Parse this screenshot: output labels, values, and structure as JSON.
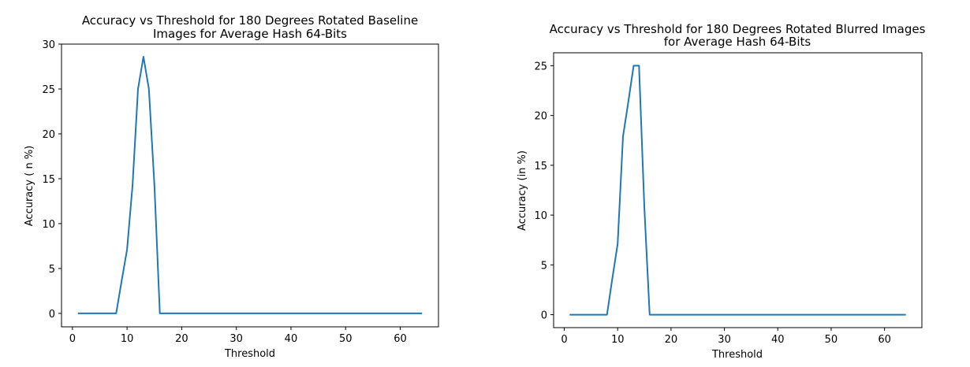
{
  "chart_data": [
    {
      "type": "line",
      "title_lines": [
        "Accuracy vs Threshold for 180 Degrees Rotated Baseline",
        "Images for Average Hash 64-Bits"
      ],
      "xlabel": "Threshold",
      "ylabel": "Accuracy ( n %)",
      "xlim": [
        -2,
        67
      ],
      "ylim": [
        -1.5,
        30
      ],
      "xticks": [
        0,
        10,
        20,
        30,
        40,
        50,
        60
      ],
      "yticks": [
        0,
        5,
        10,
        15,
        20,
        25,
        30
      ],
      "series_color": "#1f77b4",
      "x": [
        1,
        8,
        9,
        10,
        11,
        12,
        13,
        14,
        15,
        16,
        64
      ],
      "y": [
        0,
        0,
        3.6,
        7.1,
        14.3,
        25.0,
        28.6,
        25.0,
        14.3,
        0,
        0
      ]
    },
    {
      "type": "line",
      "title_lines": [
        "Accuracy vs Threshold for 180 Degrees Rotated Blurred Images",
        "for Average Hash 64-Bits"
      ],
      "xlabel": "Threshold",
      "ylabel": "Accuracy (in %)",
      "xlim": [
        -2,
        67
      ],
      "ylim": [
        -1.3,
        26.3
      ],
      "xticks": [
        0,
        10,
        20,
        30,
        40,
        50,
        60
      ],
      "yticks": [
        0,
        5,
        10,
        15,
        20,
        25
      ],
      "series_color": "#1f77b4",
      "x": [
        1,
        8,
        9,
        10,
        11,
        12,
        12.5,
        13,
        13.5,
        14,
        15,
        16,
        64
      ],
      "y": [
        0,
        0,
        3.6,
        7.1,
        17.9,
        21.4,
        23.2,
        25.0,
        25.0,
        25.0,
        10.7,
        0,
        0
      ]
    }
  ]
}
